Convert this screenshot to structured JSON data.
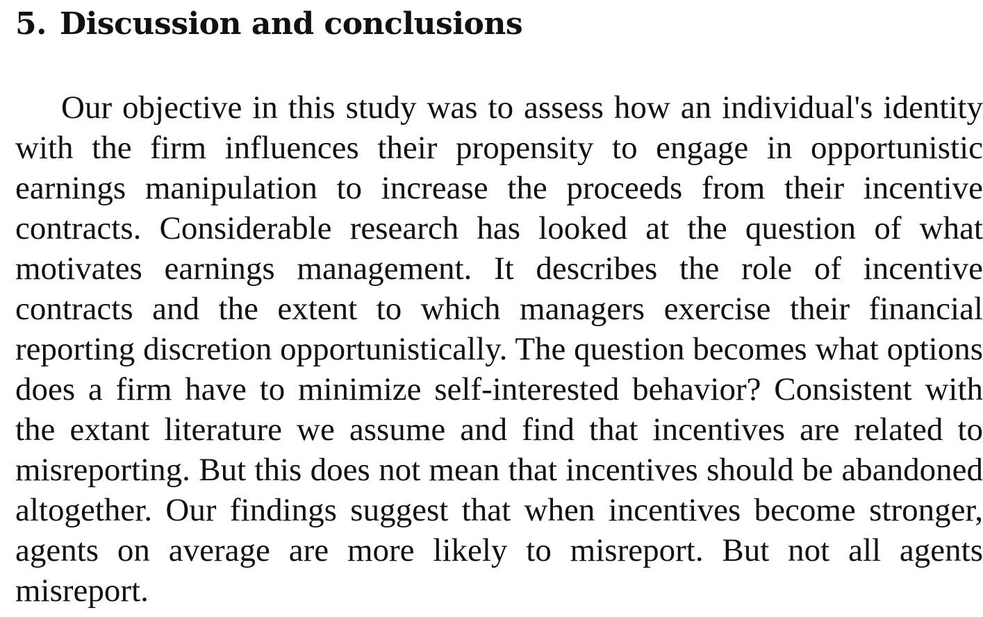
{
  "section": {
    "number": "5.",
    "title": "Discussion and conclusions"
  },
  "paragraph": "Our objective in this study was to assess how an individual's identity with the firm influences their propensity to engage in opportunistic earnings manipulation to increase the proceeds from their incentive contracts. Considerable research has looked at the question of what motivates earnings management. It describes the role of incentive contracts and the extent to which managers ex­ercise their financial reporting discretion opportunistically. The question becomes what options does a firm have to minimize self-interested behavior? Consistent with the extant literature we as­sume and find that incentives are related to misreporting. But this does not mean that incentives should be abandoned altogether. Our findings suggest that when incentives become stronger, agents on average are more likely to misreport. But not all agents misreport."
}
